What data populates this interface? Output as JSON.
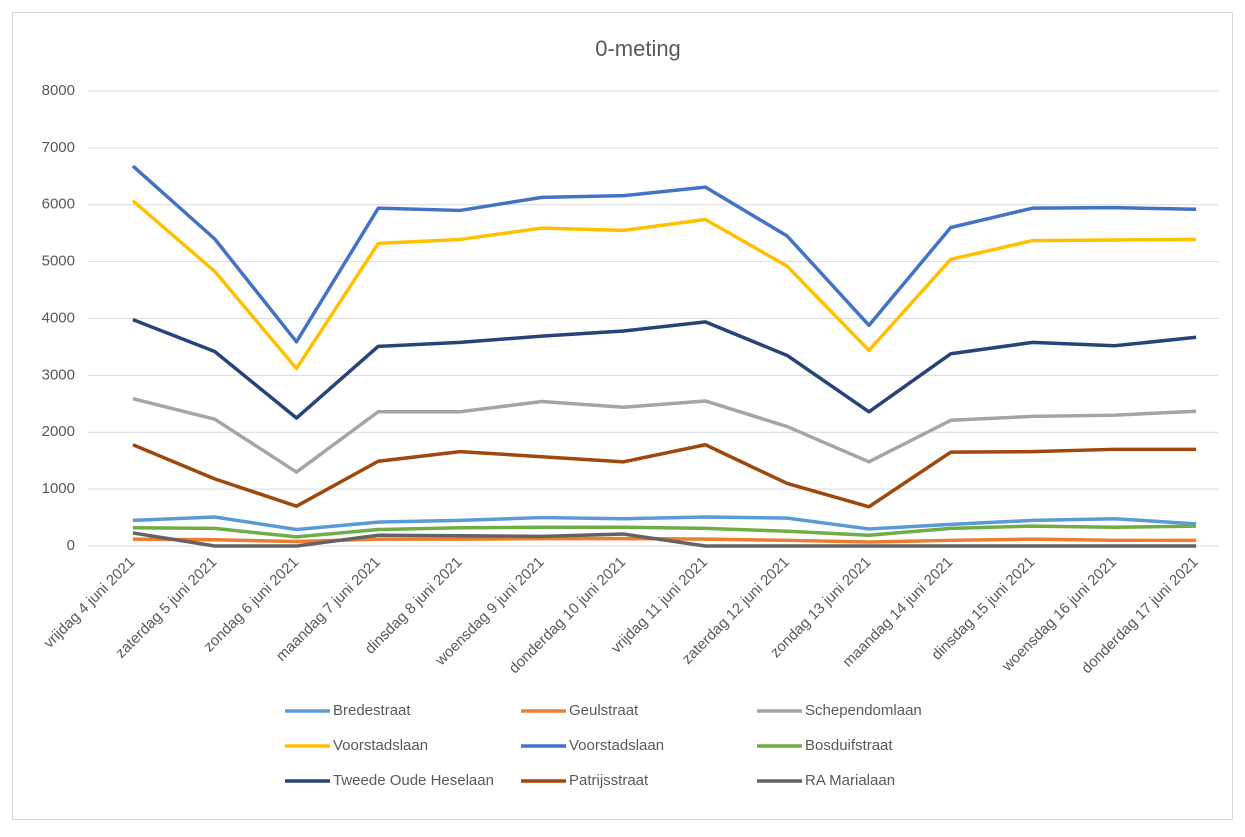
{
  "chart_data": {
    "type": "line",
    "title": "0-meting",
    "categories": [
      "vrijdag 4 juni 2021",
      "zaterdag 5 juni 2021",
      "zondag 6 juni 2021",
      "maandag 7 juni 2021",
      "dinsdag 8 juni 2021",
      "woensdag 9 juni 2021",
      "donderdag 10 juni 2021",
      "vrijdag 11 juni 2021",
      "zaterdag 12 juni 2021",
      "zondag 13 juni 2021",
      "maandag 14 juni 2021",
      "dinsdag 15 juni 2021",
      "woensdag 16 juni 2021",
      "donderdag 17 juni 2021"
    ],
    "series": [
      {
        "name": "Bredestraat",
        "color": "#5b9bd5",
        "values": [
          450,
          510,
          290,
          420,
          450,
          500,
          480,
          510,
          490,
          300,
          380,
          450,
          480,
          390
        ]
      },
      {
        "name": "Geulstraat",
        "color": "#ed7d31",
        "values": [
          120,
          110,
          80,
          120,
          120,
          130,
          130,
          120,
          100,
          70,
          100,
          120,
          100,
          100
        ]
      },
      {
        "name": "Schependomlaan",
        "color": "#a5a5a5",
        "values": [
          2590,
          2230,
          1300,
          2360,
          2360,
          2540,
          2440,
          2550,
          2100,
          1480,
          2210,
          2280,
          2300,
          2370
        ]
      },
      {
        "name": "Voorstadslaan",
        "color": "#ffc000",
        "values": [
          6070,
          4830,
          3120,
          5320,
          5390,
          5590,
          5550,
          5740,
          4920,
          3440,
          5040,
          5370,
          5380,
          5390
        ]
      },
      {
        "name": "Voorstadslaan",
        "color": "#4472c4",
        "values": [
          6680,
          5400,
          3590,
          5940,
          5900,
          6130,
          6160,
          6310,
          5450,
          3880,
          5600,
          5940,
          5950,
          5920
        ]
      },
      {
        "name": "Bosduifstraat",
        "color": "#70ad47",
        "values": [
          320,
          310,
          160,
          290,
          320,
          330,
          330,
          310,
          260,
          190,
          310,
          350,
          330,
          350
        ]
      },
      {
        "name": "Tweede Oude Heselaan",
        "color": "#264478",
        "values": [
          3980,
          3420,
          2250,
          3510,
          3580,
          3690,
          3780,
          3940,
          3350,
          2360,
          3380,
          3580,
          3520,
          3670
        ]
      },
      {
        "name": "Patrijsstraat",
        "color": "#9e480e",
        "values": [
          1780,
          1180,
          700,
          1490,
          1660,
          1570,
          1480,
          1780,
          1100,
          690,
          1650,
          1660,
          1700,
          1700
        ]
      },
      {
        "name": "RA Marialaan",
        "color": "#636363",
        "values": [
          230,
          0,
          0,
          190,
          180,
          170,
          210,
          0,
          0,
          0,
          0,
          0,
          0,
          0
        ]
      }
    ],
    "ylim": [
      0,
      8000
    ],
    "yticks": [
      0,
      1000,
      2000,
      3000,
      4000,
      5000,
      6000,
      7000,
      8000
    ],
    "grid": true,
    "legend": "bottom"
  }
}
